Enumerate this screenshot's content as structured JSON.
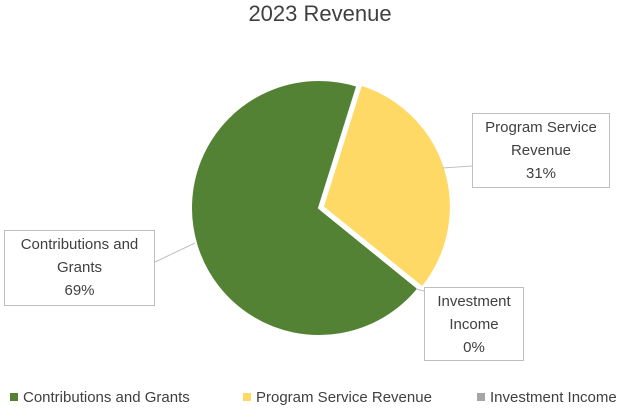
{
  "chart_data": {
    "type": "pie",
    "title": "2023 Revenue",
    "categories": [
      "Contributions and Grants",
      "Program Service Revenue",
      "Investment Income"
    ],
    "values": [
      69,
      31,
      0
    ],
    "value_labels": [
      "69%",
      "31%",
      "0%"
    ],
    "colors": [
      "#548235",
      "#ffd966",
      "#a5a5a5"
    ],
    "legend": "bottom"
  }
}
